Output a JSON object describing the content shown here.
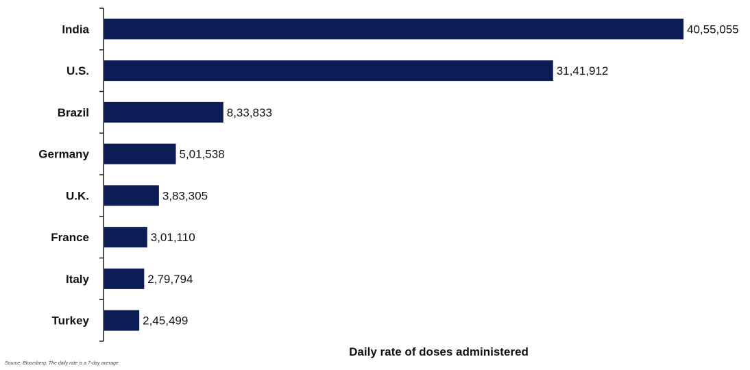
{
  "chart_data": {
    "type": "bar",
    "orientation": "horizontal",
    "categories": [
      "India",
      "U.S.",
      "Brazil",
      "Germany",
      "U.K.",
      "France",
      "Italy",
      "Turkey"
    ],
    "values": [
      4055055,
      3141912,
      833833,
      501538,
      383305,
      301110,
      279794,
      245499
    ],
    "value_labels": [
      "40,55,055",
      "31,41,912",
      "8,33,833",
      "5,01,538",
      "3,83,305",
      "3,01,110",
      "2,79,794",
      "2,45,499"
    ],
    "xlabel": "Daily rate of doses administered",
    "ylabel": "",
    "title": "",
    "xlim": [
      0,
      4055055
    ],
    "grid": false,
    "legend": "none",
    "bar_color": "#0c1c54",
    "axis_color": "#1a1a1a"
  },
  "footnote": {
    "source": "Source: Bloomberg; The daily rate is a 7-day average"
  }
}
